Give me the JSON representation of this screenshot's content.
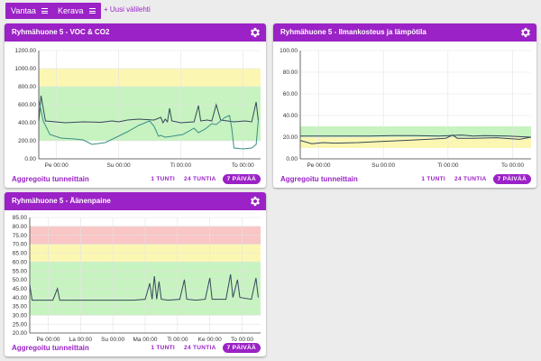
{
  "topbar": {
    "tabs": [
      {
        "label": "Vantaa"
      },
      {
        "label": "Kerava"
      }
    ],
    "new_tab_label": "+ Uusi välilehti"
  },
  "cards": [
    {
      "title": "Ryhmähuone 5 - VOC & CO2",
      "aggregate_label": "Aggregoitu tunneittain",
      "ranges": [
        "1 TUNTI",
        "24 TUNTIA",
        "7 PÄIVÄÄ"
      ],
      "active_range": "7 PÄIVÄÄ"
    },
    {
      "title": "Ryhmähuone 5 - Ilmankosteus ja lämpötila",
      "aggregate_label": "Aggregoitu tunneittain",
      "ranges": [
        "1 TUNTI",
        "24 TUNTIA",
        "7 PÄIVÄÄ"
      ],
      "active_range": "7 PÄIVÄÄ"
    },
    {
      "title": "Ryhmähuone 5 - Äänenpaine",
      "aggregate_label": "Aggregoitu tunneittain",
      "ranges": [
        "1 TUNTI",
        "24 TUNTIA",
        "7 PÄIVÄÄ"
      ],
      "active_range": "7 PÄIVÄÄ"
    }
  ],
  "colors": {
    "accent": "#9b22c6",
    "band_green": "#c7f3c0",
    "band_yellow": "#fbf7b3",
    "band_red": "#f9c5c5",
    "line_dark": "#34495a",
    "line_teal": "#3a8f86"
  },
  "chart_data": [
    {
      "type": "line",
      "ylim": [
        0,
        1200
      ],
      "yticks": [
        "0.00",
        "200.00",
        "400.00",
        "600.00",
        "800.00",
        "1000.00",
        "1200.00"
      ],
      "xticks": [
        "Pe 00:00",
        "Su 00:00",
        "Ti 00:00",
        "To 00:00"
      ],
      "xtick_positions": [
        0.08,
        0.36,
        0.64,
        0.92
      ],
      "bands": [
        {
          "from": 200,
          "to": 800,
          "color": "green"
        },
        {
          "from": 800,
          "to": 1000,
          "color": "yellow"
        }
      ],
      "series": [
        {
          "color": "dark",
          "points": [
            [
              0,
              420
            ],
            [
              0.01,
              700
            ],
            [
              0.03,
              420
            ],
            [
              0.12,
              400
            ],
            [
              0.2,
              410
            ],
            [
              0.28,
              405
            ],
            [
              0.33,
              420
            ],
            [
              0.36,
              410
            ],
            [
              0.4,
              430
            ],
            [
              0.45,
              440
            ],
            [
              0.52,
              430
            ],
            [
              0.55,
              460
            ],
            [
              0.56,
              400
            ],
            [
              0.57,
              440
            ],
            [
              0.58,
              410
            ],
            [
              0.59,
              560
            ],
            [
              0.6,
              420
            ],
            [
              0.64,
              400
            ],
            [
              0.7,
              410
            ],
            [
              0.72,
              590
            ],
            [
              0.73,
              420
            ],
            [
              0.76,
              430
            ],
            [
              0.78,
              420
            ],
            [
              0.8,
              600
            ],
            [
              0.82,
              430
            ],
            [
              0.88,
              410
            ],
            [
              0.93,
              420
            ],
            [
              0.96,
              410
            ],
            [
              0.98,
              630
            ],
            [
              0.99,
              420
            ]
          ]
        },
        {
          "color": "teal",
          "points": [
            [
              0,
              650
            ],
            [
              0.02,
              420
            ],
            [
              0.05,
              270
            ],
            [
              0.1,
              230
            ],
            [
              0.16,
              220
            ],
            [
              0.2,
              210
            ],
            [
              0.24,
              160
            ],
            [
              0.3,
              180
            ],
            [
              0.35,
              240
            ],
            [
              0.4,
              300
            ],
            [
              0.45,
              370
            ],
            [
              0.5,
              420
            ],
            [
              0.52,
              360
            ],
            [
              0.54,
              250
            ],
            [
              0.55,
              260
            ],
            [
              0.57,
              240
            ],
            [
              0.6,
              250
            ],
            [
              0.65,
              270
            ],
            [
              0.7,
              340
            ],
            [
              0.72,
              290
            ],
            [
              0.75,
              330
            ],
            [
              0.78,
              390
            ],
            [
              0.8,
              380
            ],
            [
              0.84,
              460
            ],
            [
              0.86,
              480
            ],
            [
              0.87,
              340
            ],
            [
              0.88,
              120
            ],
            [
              0.92,
              110
            ],
            [
              0.96,
              120
            ],
            [
              0.98,
              160
            ],
            [
              0.99,
              430
            ]
          ]
        }
      ]
    },
    {
      "type": "line",
      "ylim": [
        0,
        100
      ],
      "yticks": [
        "0.00",
        "20.00",
        "40.00",
        "60.00",
        "80.00",
        "100.00"
      ],
      "xticks": [
        "Pe 00:00",
        "Su 00:00",
        "Ti 00:00",
        "To 00:00"
      ],
      "xtick_positions": [
        0.08,
        0.36,
        0.64,
        0.92
      ],
      "bands": [
        {
          "from": 10,
          "to": 20,
          "color": "yellow"
        },
        {
          "from": 20,
          "to": 30,
          "color": "green"
        }
      ],
      "series": [
        {
          "color": "dark",
          "points": [
            [
              0,
              21
            ],
            [
              0.1,
              21
            ],
            [
              0.2,
              21
            ],
            [
              0.3,
              21
            ],
            [
              0.4,
              21.5
            ],
            [
              0.5,
              21.5
            ],
            [
              0.6,
              21
            ],
            [
              0.7,
              22
            ],
            [
              0.75,
              21
            ],
            [
              0.8,
              21.5
            ],
            [
              0.9,
              21
            ],
            [
              1,
              20
            ]
          ]
        },
        {
          "color": "dark",
          "points": [
            [
              0,
              17
            ],
            [
              0.05,
              14
            ],
            [
              0.1,
              15
            ],
            [
              0.15,
              14.5
            ],
            [
              0.25,
              15
            ],
            [
              0.35,
              16
            ],
            [
              0.45,
              17
            ],
            [
              0.55,
              18
            ],
            [
              0.63,
              19
            ],
            [
              0.66,
              22
            ],
            [
              0.68,
              19
            ],
            [
              0.75,
              19
            ],
            [
              0.85,
              19.5
            ],
            [
              0.95,
              18
            ],
            [
              1,
              20
            ]
          ]
        }
      ]
    },
    {
      "type": "line",
      "ylim": [
        20,
        85
      ],
      "yticks": [
        "20.00",
        "25.00",
        "30.00",
        "35.00",
        "40.00",
        "45.00",
        "50.00",
        "55.00",
        "60.00",
        "65.00",
        "70.00",
        "75.00",
        "80.00",
        "85.00"
      ],
      "xticks": [
        "Pe 00:00",
        "La 00:00",
        "Su 00:00",
        "Ma 00:00",
        "Ti 00:00",
        "Ke 00:00",
        "To 00:00"
      ],
      "xtick_positions": [
        0.08,
        0.22,
        0.36,
        0.5,
        0.64,
        0.78,
        0.92
      ],
      "bands": [
        {
          "from": 30,
          "to": 60,
          "color": "green"
        },
        {
          "from": 60,
          "to": 70,
          "color": "yellow"
        },
        {
          "from": 70,
          "to": 80,
          "color": "red"
        }
      ],
      "series": [
        {
          "color": "dark",
          "points": [
            [
              0,
              47
            ],
            [
              0.01,
              38.5
            ],
            [
              0.1,
              38.5
            ],
            [
              0.12,
              45
            ],
            [
              0.13,
              38.5
            ],
            [
              0.3,
              38.5
            ],
            [
              0.45,
              38.5
            ],
            [
              0.5,
              39
            ],
            [
              0.52,
              48
            ],
            [
              0.53,
              39
            ],
            [
              0.54,
              52
            ],
            [
              0.55,
              39
            ],
            [
              0.56,
              49
            ],
            [
              0.57,
              39
            ],
            [
              0.6,
              38.5
            ],
            [
              0.65,
              39
            ],
            [
              0.67,
              50
            ],
            [
              0.68,
              39
            ],
            [
              0.72,
              38.5
            ],
            [
              0.76,
              39
            ],
            [
              0.78,
              51
            ],
            [
              0.79,
              39
            ],
            [
              0.85,
              39
            ],
            [
              0.87,
              53
            ],
            [
              0.88,
              40
            ],
            [
              0.9,
              50
            ],
            [
              0.91,
              40
            ],
            [
              0.96,
              39
            ],
            [
              0.98,
              51
            ],
            [
              0.99,
              40
            ]
          ]
        }
      ]
    }
  ]
}
